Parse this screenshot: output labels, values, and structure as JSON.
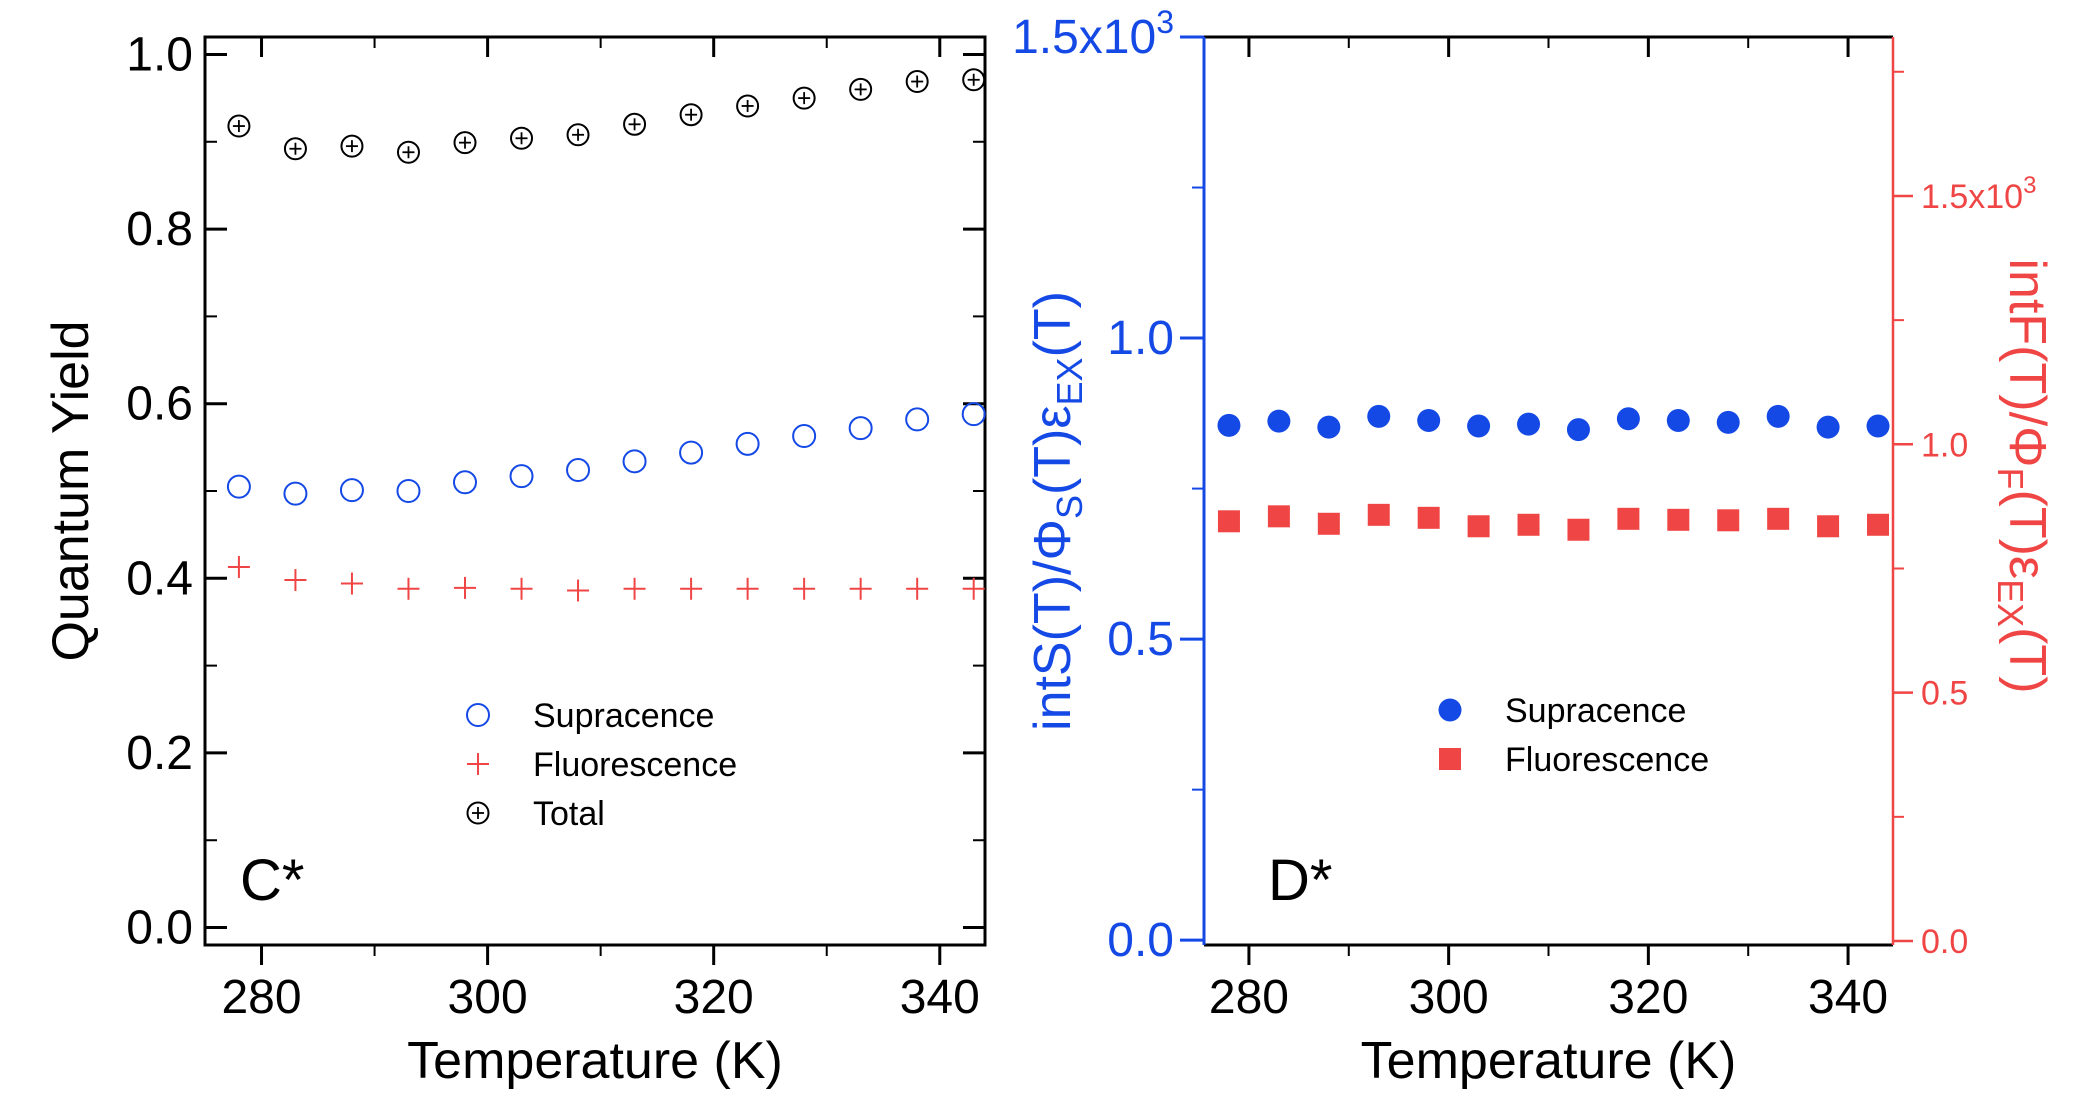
{
  "colors": {
    "axis": "#000000",
    "blue": "#1449e6",
    "red": "#f04545",
    "black": "#000000"
  },
  "chart_data": [
    {
      "panel": "C*",
      "type": "scatter",
      "xlabel": "Temperature (K)",
      "ylabel": "Quantum Yield",
      "xlim": [
        275,
        344
      ],
      "ylim": [
        -0.02,
        1.02
      ],
      "xticks": [
        "280",
        "300",
        "320",
        "340"
      ],
      "yticks": [
        "0.0",
        "0.2",
        "0.4",
        "0.6",
        "0.8",
        "1.0"
      ],
      "legend": {
        "position": "center-bottom"
      },
      "series": [
        {
          "name": "Supracence",
          "marker": "open-circle",
          "x": [
            278,
            283,
            288,
            293,
            298,
            303,
            308,
            313,
            318,
            323,
            328,
            333,
            338,
            343
          ],
          "y": [
            0.505,
            0.497,
            0.501,
            0.5,
            0.51,
            0.517,
            0.524,
            0.534,
            0.544,
            0.554,
            0.563,
            0.572,
            0.582,
            0.588
          ]
        },
        {
          "name": "Fluorescence",
          "marker": "plus",
          "x": [
            278,
            283,
            288,
            293,
            298,
            303,
            308,
            313,
            318,
            323,
            328,
            333,
            338,
            343
          ],
          "y": [
            0.413,
            0.398,
            0.394,
            0.388,
            0.389,
            0.388,
            0.386,
            0.388,
            0.388,
            0.388,
            0.388,
            0.388,
            0.388,
            0.388
          ]
        },
        {
          "name": "Total",
          "marker": "circle-plus",
          "x": [
            278,
            283,
            288,
            293,
            298,
            303,
            308,
            313,
            318,
            323,
            328,
            333,
            338,
            343
          ],
          "y": [
            0.918,
            0.892,
            0.895,
            0.888,
            0.899,
            0.904,
            0.908,
            0.92,
            0.931,
            0.941,
            0.95,
            0.96,
            0.969,
            0.971
          ]
        }
      ]
    },
    {
      "panel": "D*",
      "type": "scatter",
      "xlabel": "Temperature (K)",
      "xlim": [
        275.5,
        344.5
      ],
      "xticks": [
        "280",
        "300",
        "320",
        "340"
      ],
      "ylabel_left": {
        "base": "intS(T)/Φ",
        "sub1": "S",
        "mid": "(T)ε",
        "sub2": "EX",
        "end": "(T)"
      },
      "ylabel_right": {
        "base": "intF(T)/Φ",
        "sub1": "F",
        "mid": "(T)ε",
        "sub2": "EX",
        "end": "(T)"
      },
      "ylim_left": [
        -0.008,
        1.5
      ],
      "ylim_right": [
        -0.008,
        1.82
      ],
      "yticks_left": [
        {
          "label": "0.0"
        },
        {
          "label": "0.5"
        },
        {
          "label": "1.0"
        },
        {
          "label": "1.5x10",
          "sup": "3"
        }
      ],
      "yticks_right": [
        {
          "label": "0.0"
        },
        {
          "label": "0.5"
        },
        {
          "label": "1.0"
        },
        {
          "label": "1.5x10",
          "sup": "3"
        }
      ],
      "legend": {
        "position": "center-bottom"
      },
      "series": [
        {
          "name": "Supracence",
          "marker": "filled-circle",
          "axis": "left",
          "x": [
            278,
            283,
            288,
            293,
            298,
            303,
            308,
            313,
            318,
            323,
            328,
            333,
            338,
            343
          ],
          "y": [
            0.855,
            0.862,
            0.852,
            0.87,
            0.863,
            0.854,
            0.857,
            0.848,
            0.866,
            0.863,
            0.86,
            0.87,
            0.852,
            0.854
          ]
        },
        {
          "name": "Fluorescence",
          "marker": "filled-square",
          "axis": "right",
          "x": [
            278,
            283,
            288,
            293,
            298,
            303,
            308,
            313,
            318,
            323,
            328,
            333,
            338,
            343
          ],
          "y": [
            0.845,
            0.855,
            0.84,
            0.858,
            0.852,
            0.835,
            0.838,
            0.828,
            0.85,
            0.848,
            0.847,
            0.85,
            0.835,
            0.838
          ]
        }
      ]
    }
  ]
}
